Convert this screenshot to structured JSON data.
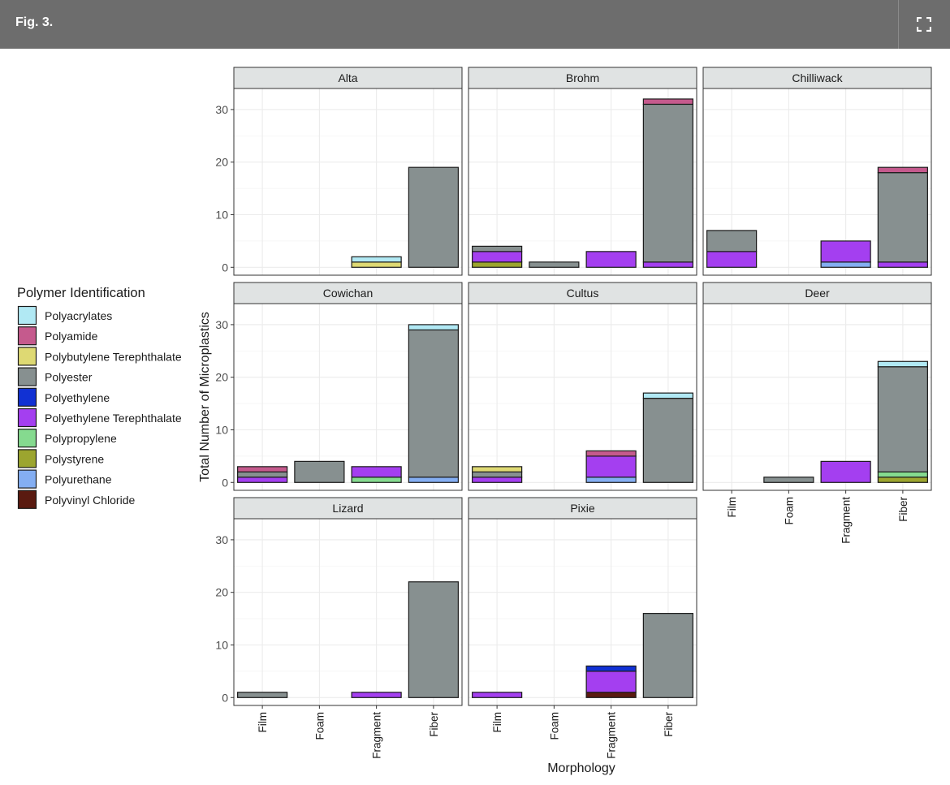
{
  "header": {
    "figure_label": "Fig. 3.",
    "expand_icon": "expand-icon"
  },
  "colors": {
    "header_bg": "#6d6d6d",
    "strip_bg": "#e0e3e3",
    "panel_border": "#333333",
    "grid": "#ebebeb"
  },
  "chart_data": {
    "type": "bar",
    "stacked": true,
    "faceted": true,
    "xlabel": "Morphology",
    "ylabel": "Total Number of Microplastics",
    "categories": [
      "Film",
      "Foam",
      "Fragment",
      "Fiber"
    ],
    "ylim": [
      -1.5,
      34
    ],
    "yticks": [
      0,
      10,
      20,
      30
    ],
    "grid": true,
    "legend": {
      "title": "Polymer Identification",
      "position": "left",
      "items": [
        {
          "name": "Polyacrylates",
          "color": "#b1e9f4"
        },
        {
          "name": "Polyamide",
          "color": "#c55a8d"
        },
        {
          "name": "Polybutylene Terephthalate",
          "color": "#ded973"
        },
        {
          "name": "Polyester",
          "color": "#879090"
        },
        {
          "name": "Polyethylene",
          "color": "#1131d3"
        },
        {
          "name": "Polyethylene Terephthalate",
          "color": "#a43ff0"
        },
        {
          "name": "Polypropylene",
          "color": "#85da8f"
        },
        {
          "name": "Polystyrene",
          "color": "#9ca52f"
        },
        {
          "name": "Polyurethane",
          "color": "#84aef2"
        },
        {
          "name": "Polyvinyl Chloride",
          "color": "#5a1a10"
        }
      ]
    },
    "panels": [
      {
        "name": "Alta",
        "bars": {
          "Film": [],
          "Foam": [],
          "Fragment": [
            {
              "polymer": "Polybutylene Terephthalate",
              "value": 1
            },
            {
              "polymer": "Polyacrylates",
              "value": 1
            }
          ],
          "Fiber": [
            {
              "polymer": "Polyester",
              "value": 19
            }
          ]
        }
      },
      {
        "name": "Brohm",
        "bars": {
          "Film": [
            {
              "polymer": "Polystyrene",
              "value": 1
            },
            {
              "polymer": "Polyethylene Terephthalate",
              "value": 2
            },
            {
              "polymer": "Polyester",
              "value": 1
            }
          ],
          "Foam": [
            {
              "polymer": "Polyester",
              "value": 1
            }
          ],
          "Fragment": [
            {
              "polymer": "Polyethylene Terephthalate",
              "value": 3
            }
          ],
          "Fiber": [
            {
              "polymer": "Polyethylene Terephthalate",
              "value": 1
            },
            {
              "polymer": "Polyester",
              "value": 30
            },
            {
              "polymer": "Polyamide",
              "value": 1
            }
          ]
        }
      },
      {
        "name": "Chilliwack",
        "bars": {
          "Film": [
            {
              "polymer": "Polyethylene Terephthalate",
              "value": 3
            },
            {
              "polymer": "Polyester",
              "value": 4
            }
          ],
          "Foam": [],
          "Fragment": [
            {
              "polymer": "Polyurethane",
              "value": 1
            },
            {
              "polymer": "Polyethylene Terephthalate",
              "value": 4
            }
          ],
          "Fiber": [
            {
              "polymer": "Polyethylene Terephthalate",
              "value": 1
            },
            {
              "polymer": "Polyester",
              "value": 17
            },
            {
              "polymer": "Polyamide",
              "value": 1
            }
          ]
        }
      },
      {
        "name": "Cowichan",
        "bars": {
          "Film": [
            {
              "polymer": "Polyethylene Terephthalate",
              "value": 1
            },
            {
              "polymer": "Polyester",
              "value": 1
            },
            {
              "polymer": "Polyamide",
              "value": 1
            }
          ],
          "Foam": [
            {
              "polymer": "Polyester",
              "value": 4
            }
          ],
          "Fragment": [
            {
              "polymer": "Polypropylene",
              "value": 1
            },
            {
              "polymer": "Polyethylene Terephthalate",
              "value": 2
            }
          ],
          "Fiber": [
            {
              "polymer": "Polyurethane",
              "value": 1
            },
            {
              "polymer": "Polyester",
              "value": 28
            },
            {
              "polymer": "Polyacrylates",
              "value": 1
            }
          ]
        }
      },
      {
        "name": "Cultus",
        "bars": {
          "Film": [
            {
              "polymer": "Polyethylene Terephthalate",
              "value": 1
            },
            {
              "polymer": "Polyester",
              "value": 1
            },
            {
              "polymer": "Polybutylene Terephthalate",
              "value": 1
            }
          ],
          "Foam": [],
          "Fragment": [
            {
              "polymer": "Polyurethane",
              "value": 1
            },
            {
              "polymer": "Polyethylene Terephthalate",
              "value": 4
            },
            {
              "polymer": "Polyamide",
              "value": 1
            }
          ],
          "Fiber": [
            {
              "polymer": "Polyester",
              "value": 16
            },
            {
              "polymer": "Polyacrylates",
              "value": 1
            }
          ]
        }
      },
      {
        "name": "Deer",
        "bars": {
          "Film": [],
          "Foam": [
            {
              "polymer": "Polyester",
              "value": 1
            }
          ],
          "Fragment": [
            {
              "polymer": "Polyethylene Terephthalate",
              "value": 4
            }
          ],
          "Fiber": [
            {
              "polymer": "Polystyrene",
              "value": 1
            },
            {
              "polymer": "Polypropylene",
              "value": 1
            },
            {
              "polymer": "Polyester",
              "value": 20
            },
            {
              "polymer": "Polyacrylates",
              "value": 1
            }
          ]
        }
      },
      {
        "name": "Lizard",
        "bars": {
          "Film": [
            {
              "polymer": "Polyester",
              "value": 1
            }
          ],
          "Foam": [],
          "Fragment": [
            {
              "polymer": "Polyethylene Terephthalate",
              "value": 1
            }
          ],
          "Fiber": [
            {
              "polymer": "Polyester",
              "value": 22
            }
          ]
        }
      },
      {
        "name": "Pixie",
        "bars": {
          "Film": [
            {
              "polymer": "Polyethylene Terephthalate",
              "value": 1
            }
          ],
          "Foam": [],
          "Fragment": [
            {
              "polymer": "Polyvinyl Chloride",
              "value": 1
            },
            {
              "polymer": "Polyethylene Terephthalate",
              "value": 4
            },
            {
              "polymer": "Polyethylene",
              "value": 1
            }
          ],
          "Fiber": [
            {
              "polymer": "Polyester",
              "value": 16
            }
          ]
        }
      }
    ]
  }
}
